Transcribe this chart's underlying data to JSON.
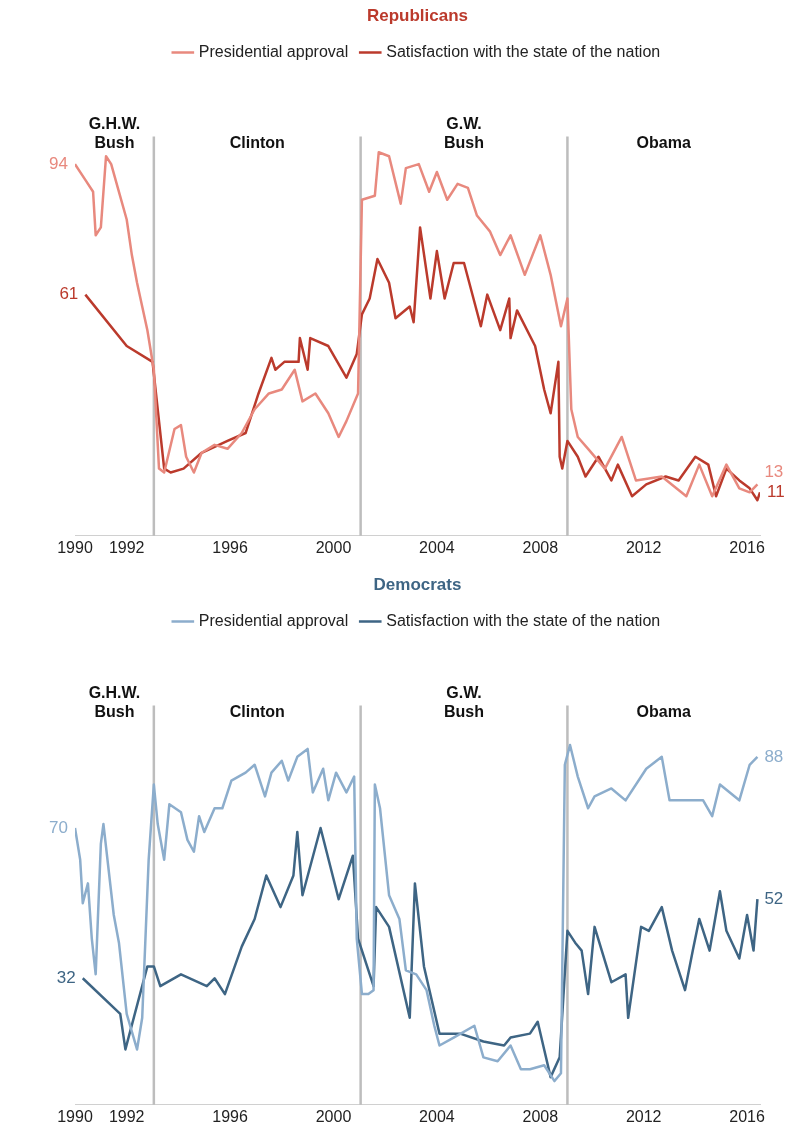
{
  "chart_data": [
    {
      "type": "line",
      "title": "Republicans",
      "legend": "top",
      "grid": false,
      "tick_labels": "x",
      "xlim": [
        1990,
        2016.5
      ],
      "xticks": [
        1990,
        1992,
        1996,
        2000,
        2004,
        2008,
        2012,
        2016
      ],
      "ref_lines": [
        {
          "axis": "x",
          "value": 1993.05
        },
        {
          "axis": "x",
          "value": 2001.05
        },
        {
          "axis": "x",
          "value": 2009.05
        }
      ],
      "annotations": [
        "G.H.W. Bush",
        "Clinton",
        "G.W. Bush",
        "Obama"
      ],
      "series": [
        {
          "name": "Presidential approval",
          "color": "#e8897e",
          "x": [
            1990,
            1990.4,
            1990.7,
            1990.8,
            1991.0,
            1991.2,
            1991.4,
            1991.7,
            1992.0,
            1992.2,
            1992.4,
            1992.6,
            1992.8,
            1993.05,
            1993.25,
            1993.45,
            1993.85,
            1994.1,
            1994.3,
            1994.6,
            1994.9,
            1995.4,
            1995.9,
            1996.45,
            1996.95,
            1997.5,
            1998.0,
            1998.5,
            1998.8,
            1999.3,
            1999.8,
            2000.2,
            2000.5,
            2000.95,
            2001.1,
            2001.6,
            2001.75,
            2002.15,
            2002.6,
            2002.8,
            2003.3,
            2003.7,
            2004.0,
            2004.4,
            2004.8,
            2005.2,
            2005.55,
            2006.05,
            2006.45,
            2006.85,
            2007.4,
            2008.0,
            2008.4,
            2008.8,
            2009.05,
            2009.2,
            2009.45,
            2009.85,
            2010.5,
            2011.15,
            2011.7,
            2012.7,
            2013.65,
            2014.15,
            2014.65,
            2015.2,
            2015.7,
            2016.1,
            2016.4
          ],
          "values": [
            94,
            90,
            87,
            76,
            78,
            96,
            94,
            87,
            80,
            71,
            64,
            58,
            52,
            42,
            17,
            16,
            27,
            28,
            20,
            16,
            21,
            23,
            22,
            26,
            32,
            36,
            37,
            42,
            34,
            36,
            31,
            25,
            29,
            36,
            85,
            86,
            97,
            96,
            84,
            93,
            94,
            87,
            92,
            85,
            89,
            88,
            81,
            77,
            71,
            76,
            66,
            76,
            66,
            53,
            60,
            32,
            25,
            22,
            17,
            25,
            14,
            15,
            10,
            18,
            10,
            18,
            12,
            11,
            13
          ],
          "value_labels": [
            "94",
            null,
            null,
            null,
            null,
            null,
            null,
            null,
            null,
            null,
            null,
            null,
            null,
            null,
            null,
            null,
            null,
            null,
            null,
            null,
            null,
            null,
            null,
            null,
            null,
            null,
            null,
            null,
            null,
            null,
            null,
            null,
            null,
            null,
            null,
            null,
            null,
            null,
            null,
            null,
            null,
            null,
            null,
            null,
            null,
            null,
            null,
            null,
            null,
            null,
            null,
            null,
            null,
            null,
            null,
            null,
            null,
            null,
            null,
            null,
            null,
            null,
            null,
            null,
            null,
            null,
            null,
            null,
            "13"
          ]
        },
        {
          "name": "Satisfaction with the state of the nation",
          "color": "#bb3a2c",
          "x": [
            1990.4,
            1992.0,
            1993.0,
            1993.45,
            1993.7,
            1994.2,
            1994.9,
            1995.9,
            1996.6,
            1997.1,
            1997.6,
            1997.75,
            1998.1,
            1998.65,
            1998.7,
            1999.0,
            1999.1,
            1999.8,
            2000.5,
            2000.9,
            2001.1,
            2001.4,
            2001.7,
            2002.15,
            2002.4,
            2002.95,
            2003.1,
            2003.35,
            2003.75,
            2004.0,
            2004.3,
            2004.65,
            2005.05,
            2005.7,
            2005.95,
            2006.45,
            2006.8,
            2006.85,
            2007.1,
            2007.8,
            2008.15,
            2008.4,
            2008.7,
            2008.75,
            2008.85,
            2009.05,
            2009.45,
            2009.75,
            2010.25,
            2010.75,
            2011.0,
            2011.55,
            2012.1,
            2012.85,
            2013.35,
            2014.0,
            2014.5,
            2014.8,
            2015.2,
            2015.7,
            2016.1,
            2016.4,
            2016.5
          ],
          "values": [
            61,
            48,
            44,
            17,
            16,
            17,
            21,
            24,
            26,
            36,
            45,
            42,
            44,
            44,
            50,
            42,
            50,
            48,
            40,
            46,
            56,
            60,
            70,
            64,
            55,
            58,
            54,
            78,
            60,
            72,
            60,
            69,
            69,
            53,
            61,
            52,
            60,
            50,
            57,
            48,
            37,
            31,
            44,
            20,
            17,
            24,
            20,
            15,
            20,
            14,
            18,
            10,
            13,
            15,
            14,
            20,
            18,
            10,
            17,
            14,
            12,
            9,
            11
          ],
          "value_labels": [
            "61",
            null,
            null,
            null,
            null,
            null,
            null,
            null,
            null,
            null,
            null,
            null,
            null,
            null,
            null,
            null,
            null,
            null,
            null,
            null,
            null,
            null,
            null,
            null,
            null,
            null,
            null,
            null,
            null,
            null,
            null,
            null,
            null,
            null,
            null,
            null,
            null,
            null,
            null,
            null,
            null,
            null,
            null,
            null,
            null,
            null,
            null,
            null,
            null,
            null,
            null,
            null,
            null,
            null,
            null,
            null,
            null,
            null,
            null,
            null,
            null,
            null,
            "11"
          ]
        }
      ]
    },
    {
      "type": "line",
      "title": "Democrats",
      "legend": "top",
      "grid": false,
      "tick_labels": "x",
      "xlim": [
        1990,
        2016.5
      ],
      "xticks": [
        1990,
        1992,
        1996,
        2000,
        2004,
        2008,
        2012,
        2016
      ],
      "ref_lines": [
        {
          "axis": "x",
          "value": 1993.05
        },
        {
          "axis": "x",
          "value": 2001.05
        },
        {
          "axis": "x",
          "value": 2009.05
        }
      ],
      "annotations": [
        "G.H.W. Bush",
        "Clinton",
        "G.W. Bush",
        "Obama"
      ],
      "series": [
        {
          "name": "Presidential approval",
          "color": "#8cadcc",
          "x": [
            1990,
            1990.2,
            1990.3,
            1990.5,
            1990.65,
            1990.8,
            1991.0,
            1991.1,
            1991.5,
            1991.7,
            1992.0,
            1992.4,
            1992.6,
            1992.85,
            1993.05,
            1993.2,
            1993.45,
            1993.65,
            1994.1,
            1994.35,
            1994.6,
            1994.8,
            1995.0,
            1995.4,
            1995.7,
            1996.05,
            1996.6,
            1996.95,
            1997.35,
            1997.6,
            1998.0,
            1998.25,
            1998.6,
            1999.0,
            1999.2,
            1999.6,
            1999.8,
            2000.1,
            2000.5,
            2000.8,
            2000.9,
            2001.1,
            2001.35,
            2001.55,
            2001.6,
            2001.8,
            2002.15,
            2002.55,
            2002.8,
            2003.2,
            2003.6,
            2003.9,
            2004.1,
            2004.65,
            2005.45,
            2005.8,
            2006.35,
            2006.85,
            2007.25,
            2007.6,
            2008.15,
            2008.55,
            2008.8,
            2008.95,
            2009.15,
            2009.45,
            2009.85,
            2010.1,
            2010.75,
            2011.3,
            2012.1,
            2012.7,
            2013.0,
            2013.65,
            2014.3,
            2014.65,
            2014.95,
            2015.7,
            2016.1,
            2016.4
          ],
          "values": [
            70,
            62,
            51,
            56,
            42,
            33,
            66,
            71,
            48,
            41,
            23,
            14,
            22,
            62,
            81,
            71,
            62,
            76,
            74,
            67,
            64,
            73,
            69,
            75,
            75,
            82,
            84,
            86,
            78,
            84,
            87,
            82,
            88,
            90,
            79,
            85,
            77,
            84,
            79,
            83,
            42,
            28,
            28,
            29,
            81,
            75,
            53,
            47,
            34,
            33,
            29,
            20,
            15,
            17,
            20,
            12,
            11,
            15,
            9,
            9,
            10,
            6,
            8,
            86,
            91,
            83,
            75,
            78,
            80,
            77,
            85,
            88,
            77,
            77,
            77,
            73,
            81,
            77,
            86,
            88
          ],
          "value_labels": [
            "70",
            null,
            null,
            null,
            null,
            null,
            null,
            null,
            null,
            null,
            null,
            null,
            null,
            null,
            null,
            null,
            null,
            null,
            null,
            null,
            null,
            null,
            null,
            null,
            null,
            null,
            null,
            null,
            null,
            null,
            null,
            null,
            null,
            null,
            null,
            null,
            null,
            null,
            null,
            null,
            null,
            null,
            null,
            null,
            null,
            null,
            null,
            null,
            null,
            null,
            null,
            null,
            null,
            null,
            null,
            null,
            null,
            null,
            null,
            null,
            null,
            null,
            null,
            null,
            null,
            null,
            null,
            null,
            null,
            null,
            null,
            null,
            null,
            null,
            null,
            null,
            null,
            null,
            null,
            "88"
          ]
        },
        {
          "name": "Satisfaction with the state of the nation",
          "color": "#3e6584",
          "x": [
            1990.3,
            1991.75,
            1991.95,
            1992.8,
            1993.05,
            1993.3,
            1994.1,
            1995.1,
            1995.4,
            1995.8,
            1996.45,
            1996.95,
            1997.4,
            1997.95,
            1998.45,
            1998.6,
            1998.8,
            1999.5,
            2000.2,
            2000.75,
            2000.95,
            2001.55,
            2001.65,
            2002.15,
            2002.95,
            2003.15,
            2003.5,
            2004.1,
            2004.9,
            2005.8,
            2006.6,
            2006.85,
            2007.6,
            2007.9,
            2008.15,
            2008.4,
            2008.75,
            2009.05,
            2009.35,
            2009.6,
            2009.85,
            2010.1,
            2010.75,
            2011.3,
            2011.4,
            2011.9,
            2012.2,
            2012.7,
            2013.1,
            2013.6,
            2013.9,
            2014.15,
            2014.55,
            2014.95,
            2015.2,
            2015.7,
            2016.0,
            2016.25,
            2016.4
          ],
          "values": [
            32,
            23,
            14,
            35,
            35,
            30,
            33,
            30,
            32,
            28,
            40,
            47,
            58,
            50,
            58,
            69,
            53,
            70,
            52,
            63,
            42,
            30,
            50,
            45,
            22,
            56,
            35,
            18,
            18,
            16,
            15,
            17,
            18,
            21,
            14,
            7,
            12,
            44,
            41,
            39,
            28,
            45,
            31,
            33,
            22,
            45,
            44,
            50,
            39,
            29,
            39,
            47,
            39,
            54,
            44,
            37,
            48,
            39,
            52
          ],
          "value_labels": [
            "32",
            null,
            null,
            null,
            null,
            null,
            null,
            null,
            null,
            null,
            null,
            null,
            null,
            null,
            null,
            null,
            null,
            null,
            null,
            null,
            null,
            null,
            null,
            null,
            null,
            null,
            null,
            null,
            null,
            null,
            null,
            null,
            null,
            null,
            null,
            null,
            null,
            null,
            null,
            null,
            null,
            null,
            null,
            null,
            null,
            null,
            null,
            null,
            null,
            null,
            null,
            null,
            null,
            null,
            null,
            null,
            null,
            null,
            "52"
          ]
        }
      ]
    }
  ]
}
